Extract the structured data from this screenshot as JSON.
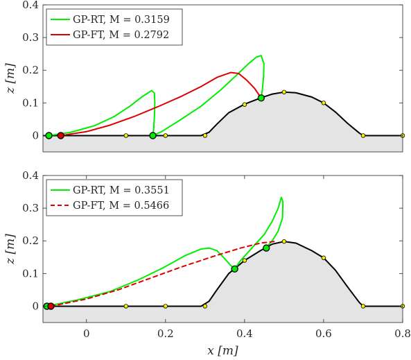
{
  "chart_data": [
    {
      "type": "line",
      "xlim": [
        -0.11,
        0.8
      ],
      "ylim": [
        -0.05,
        0.4
      ],
      "yticks": [
        0,
        0.1,
        0.2,
        0.3,
        0.4
      ],
      "ytick_labels": [
        "0",
        "0.1",
        "0.2",
        "0.3",
        "0.4"
      ],
      "xticks": [],
      "ylabel": "z [m]",
      "legend": {
        "placement": "top-left",
        "entries": [
          {
            "name": "GP-RT",
            "m_label": "M = 0.3159",
            "color": "#00ee00",
            "dash": false
          },
          {
            "name": "GP-FT",
            "m_label": "M = 0.2792",
            "color": "#dd0000",
            "dash": false
          }
        ]
      },
      "terrain": [
        [
          -0.11,
          0
        ],
        [
          0.29,
          0
        ],
        [
          0.31,
          0.01
        ],
        [
          0.33,
          0.035
        ],
        [
          0.36,
          0.07
        ],
        [
          0.4,
          0.096
        ],
        [
          0.44,
          0.115
        ],
        [
          0.47,
          0.127
        ],
        [
          0.5,
          0.133
        ],
        [
          0.53,
          0.131
        ],
        [
          0.57,
          0.118
        ],
        [
          0.6,
          0.1
        ],
        [
          0.63,
          0.072
        ],
        [
          0.66,
          0.038
        ],
        [
          0.69,
          0.008
        ],
        [
          0.7,
          0
        ],
        [
          0.8,
          0
        ]
      ],
      "control_points": [
        [
          0.1,
          0
        ],
        [
          0.2,
          0
        ],
        [
          0.3,
          0
        ],
        [
          0.4,
          0.095
        ],
        [
          0.5,
          0.133
        ],
        [
          0.6,
          0.1
        ],
        [
          0.7,
          0
        ],
        [
          0.8,
          0
        ]
      ],
      "series": [
        {
          "name": "GP-RT",
          "color": "#00ee00",
          "dash": false,
          "points": [
            [
              -0.095,
              0
            ],
            [
              -0.04,
              0.01
            ],
            [
              0.02,
              0.03
            ],
            [
              0.07,
              0.058
            ],
            [
              0.11,
              0.09
            ],
            [
              0.14,
              0.118
            ],
            [
              0.165,
              0.138
            ],
            [
              0.172,
              0.13
            ],
            [
              0.173,
              0.1
            ],
            [
              0.172,
              0.06
            ],
            [
              0.17,
              0.02
            ],
            [
              0.168,
              0
            ],
            [
              0.19,
              0.012
            ],
            [
              0.24,
              0.05
            ],
            [
              0.29,
              0.09
            ],
            [
              0.34,
              0.14
            ],
            [
              0.38,
              0.185
            ],
            [
              0.41,
              0.22
            ],
            [
              0.43,
              0.24
            ],
            [
              0.442,
              0.245
            ],
            [
              0.449,
              0.22
            ],
            [
              0.448,
              0.18
            ],
            [
              0.445,
              0.14
            ],
            [
              0.442,
              0.115
            ]
          ],
          "markers": [
            [
              -0.095,
              0
            ],
            [
              0.168,
              0
            ],
            [
              0.442,
              0.115
            ]
          ]
        },
        {
          "name": "GP-FT",
          "color": "#dd0000",
          "dash": false,
          "points": [
            [
              -0.065,
              0
            ],
            [
              0.0,
              0.012
            ],
            [
              0.06,
              0.032
            ],
            [
              0.12,
              0.058
            ],
            [
              0.18,
              0.088
            ],
            [
              0.24,
              0.12
            ],
            [
              0.29,
              0.15
            ],
            [
              0.33,
              0.178
            ],
            [
              0.365,
              0.193
            ],
            [
              0.385,
              0.19
            ],
            [
              0.405,
              0.17
            ],
            [
              0.425,
              0.145
            ],
            [
              0.442,
              0.115
            ]
          ],
          "markers": [
            [
              -0.065,
              0
            ]
          ]
        }
      ]
    },
    {
      "type": "line",
      "xlim": [
        -0.11,
        0.8
      ],
      "ylim": [
        -0.05,
        0.4
      ],
      "yticks": [
        0,
        0.1,
        0.2,
        0.3,
        0.4
      ],
      "ytick_labels": [
        "0",
        "0.1",
        "0.2",
        "0.3",
        "0.4"
      ],
      "xticks": [
        0,
        0.2,
        0.4,
        0.6,
        0.8
      ],
      "xtick_labels": [
        "0",
        "0.2",
        "0.4",
        "0.6",
        "0.8"
      ],
      "ylabel": "z [m]",
      "xlabel": "x [m]",
      "legend": {
        "placement": "top-left",
        "entries": [
          {
            "name": "GP-RT",
            "m_label": "M = 0.3551",
            "color": "#00ee00",
            "dash": false
          },
          {
            "name": "GP-FT",
            "m_label": "M = 0.5466",
            "color": "#dd0000",
            "dash": true
          }
        ]
      },
      "terrain": [
        [
          -0.11,
          0
        ],
        [
          0.29,
          0
        ],
        [
          0.31,
          0.015
        ],
        [
          0.33,
          0.05
        ],
        [
          0.36,
          0.1
        ],
        [
          0.4,
          0.14
        ],
        [
          0.44,
          0.17
        ],
        [
          0.47,
          0.19
        ],
        [
          0.5,
          0.198
        ],
        [
          0.53,
          0.193
        ],
        [
          0.57,
          0.17
        ],
        [
          0.6,
          0.148
        ],
        [
          0.63,
          0.11
        ],
        [
          0.66,
          0.06
        ],
        [
          0.69,
          0.012
        ],
        [
          0.7,
          0
        ],
        [
          0.8,
          0
        ]
      ],
      "control_points": [
        [
          0.1,
          0
        ],
        [
          0.2,
          0
        ],
        [
          0.3,
          0
        ],
        [
          0.4,
          0.14
        ],
        [
          0.5,
          0.198
        ],
        [
          0.6,
          0.148
        ],
        [
          0.7,
          0
        ],
        [
          0.8,
          0
        ]
      ],
      "series": [
        {
          "name": "GP-RT",
          "color": "#00ee00",
          "dash": false,
          "points": [
            [
              -0.1,
              0
            ],
            [
              -0.02,
              0.02
            ],
            [
              0.06,
              0.045
            ],
            [
              0.13,
              0.08
            ],
            [
              0.19,
              0.115
            ],
            [
              0.25,
              0.155
            ],
            [
              0.29,
              0.175
            ],
            [
              0.31,
              0.178
            ],
            [
              0.33,
              0.17
            ],
            [
              0.35,
              0.145
            ],
            [
              0.365,
              0.125
            ],
            [
              0.375,
              0.114
            ],
            [
              0.39,
              0.14
            ],
            [
              0.42,
              0.18
            ],
            [
              0.45,
              0.22
            ],
            [
              0.47,
              0.26
            ],
            [
              0.485,
              0.3
            ],
            [
              0.493,
              0.333
            ],
            [
              0.497,
              0.32
            ],
            [
              0.496,
              0.27
            ],
            [
              0.485,
              0.23
            ],
            [
              0.47,
              0.2
            ],
            [
              0.455,
              0.18
            ]
          ],
          "markers": [
            [
              -0.1,
              0
            ],
            [
              0.375,
              0.114
            ],
            [
              0.455,
              0.178
            ]
          ]
        },
        {
          "name": "GP-FT",
          "color": "#dd0000",
          "dash": true,
          "points": [
            [
              -0.09,
              0
            ],
            [
              0.0,
              0.022
            ],
            [
              0.08,
              0.05
            ],
            [
              0.16,
              0.085
            ],
            [
              0.24,
              0.12
            ],
            [
              0.32,
              0.152
            ],
            [
              0.39,
              0.178
            ],
            [
              0.44,
              0.193
            ],
            [
              0.475,
              0.198
            ]
          ],
          "markers": [
            [
              -0.09,
              0
            ]
          ]
        }
      ]
    }
  ]
}
